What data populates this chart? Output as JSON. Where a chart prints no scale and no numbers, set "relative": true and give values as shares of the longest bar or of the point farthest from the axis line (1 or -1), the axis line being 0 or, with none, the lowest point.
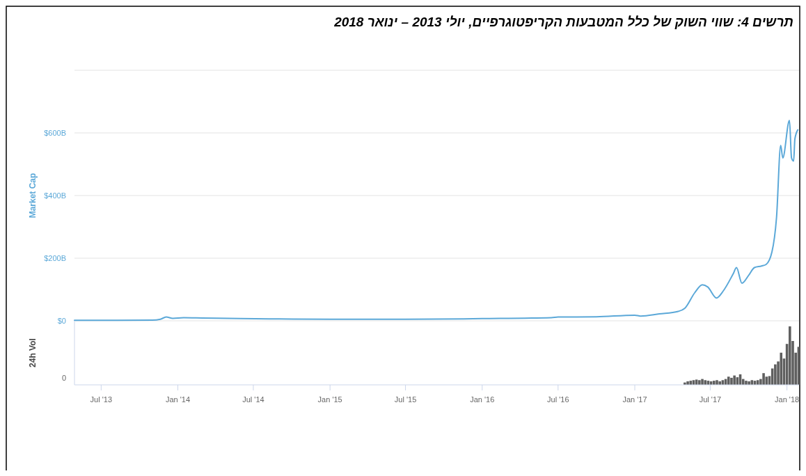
{
  "chart_data": [
    {
      "type": "line",
      "title": "תרשים 4: שווי השוק של כלל המטבעות הקריפטוגרפיים, יולי 2013 – ינואר 2018",
      "ylabel": "Market Cap",
      "xlim": [
        "2013-04-28",
        "2018-01-30"
      ],
      "ylim": [
        0,
        800
      ],
      "yticks": [
        {
          "value": 0,
          "label": "$0"
        },
        {
          "value": 200,
          "label": "$200B"
        },
        {
          "value": 400,
          "label": "$400B"
        },
        {
          "value": 600,
          "label": "$600B"
        },
        {
          "value": 800,
          "label": null
        }
      ],
      "grid": "y",
      "tick_labels": "y",
      "series": [
        {
          "color": "#5ba8d8",
          "x": [
            "2013-04-28",
            "2013-11-01",
            "2013-11-20",
            "2013-12-04",
            "2013-12-20",
            "2014-01-15",
            "2014-03-01",
            "2014-06-01",
            "2014-09-01",
            "2015-01-01",
            "2015-07-01",
            "2016-01-01",
            "2016-06-15",
            "2016-07-01",
            "2016-10-01",
            "2017-01-01",
            "2017-01-15",
            "2017-03-01",
            "2017-04-15",
            "2017-05-01",
            "2017-05-25",
            "2017-06-12",
            "2017-06-25",
            "2017-07-16",
            "2017-08-01",
            "2017-08-25",
            "2017-09-02",
            "2017-09-15",
            "2017-10-01",
            "2017-10-15",
            "2017-11-01",
            "2017-11-12",
            "2017-11-26",
            "2017-12-07",
            "2017-12-17",
            "2017-12-22",
            "2018-01-07",
            "2018-01-12",
            "2018-01-17",
            "2018-01-20",
            "2018-01-27"
          ],
          "values": [
            1.5,
            2,
            5,
            12,
            8,
            10,
            9,
            7,
            6,
            5,
            5,
            7,
            10,
            12,
            13,
            18,
            15,
            22,
            30,
            40,
            90,
            115,
            108,
            73,
            95,
            150,
            170,
            120,
            145,
            170,
            175,
            180,
            220,
            330,
            560,
            520,
            640,
            520,
            510,
            580,
            610
          ]
        }
      ]
    },
    {
      "type": "bar",
      "ylabel": "24h Vol",
      "relative": true,
      "xlim": [
        "2013-04-28",
        "2018-01-30"
      ],
      "xticks": [
        {
          "value": "2013-07-01",
          "label": "Jul '13"
        },
        {
          "value": "2014-01-01",
          "label": "Jan '14"
        },
        {
          "value": "2014-07-01",
          "label": "Jul '14"
        },
        {
          "value": "2015-01-01",
          "label": "Jan '15"
        },
        {
          "value": "2015-07-01",
          "label": "Jul '15"
        },
        {
          "value": "2016-01-01",
          "label": "Jan '16"
        },
        {
          "value": "2016-07-01",
          "label": "Jul '16"
        },
        {
          "value": "2017-01-01",
          "label": "Jan '17"
        },
        {
          "value": "2017-07-01",
          "label": "Jul '17"
        },
        {
          "value": "2018-01-01",
          "label": "Jan '18"
        }
      ],
      "tick_labels": "x",
      "annotations": [
        "0"
      ],
      "series": [
        {
          "color": "#5f5f5f",
          "x": [
            "2017-05-01",
            "2017-05-08",
            "2017-05-15",
            "2017-05-22",
            "2017-05-29",
            "2017-06-05",
            "2017-06-12",
            "2017-06-19",
            "2017-06-26",
            "2017-07-03",
            "2017-07-10",
            "2017-07-17",
            "2017-07-24",
            "2017-07-31",
            "2017-08-07",
            "2017-08-14",
            "2017-08-21",
            "2017-08-28",
            "2017-09-04",
            "2017-09-11",
            "2017-09-18",
            "2017-09-25",
            "2017-10-02",
            "2017-10-09",
            "2017-10-16",
            "2017-10-23",
            "2017-10-30",
            "2017-11-06",
            "2017-11-13",
            "2017-11-20",
            "2017-11-27",
            "2017-12-04",
            "2017-12-11",
            "2017-12-18",
            "2017-12-25",
            "2018-01-01",
            "2018-01-08",
            "2018-01-15",
            "2018-01-22",
            "2018-01-29"
          ],
          "values": [
            0.04,
            0.06,
            0.07,
            0.08,
            0.09,
            0.08,
            0.1,
            0.08,
            0.07,
            0.06,
            0.07,
            0.08,
            0.06,
            0.08,
            0.1,
            0.14,
            0.12,
            0.16,
            0.13,
            0.18,
            0.1,
            0.07,
            0.06,
            0.08,
            0.07,
            0.08,
            0.1,
            0.2,
            0.14,
            0.15,
            0.28,
            0.35,
            0.4,
            0.55,
            0.45,
            0.7,
            1,
            0.75,
            0.55,
            0.65
          ]
        }
      ]
    }
  ]
}
